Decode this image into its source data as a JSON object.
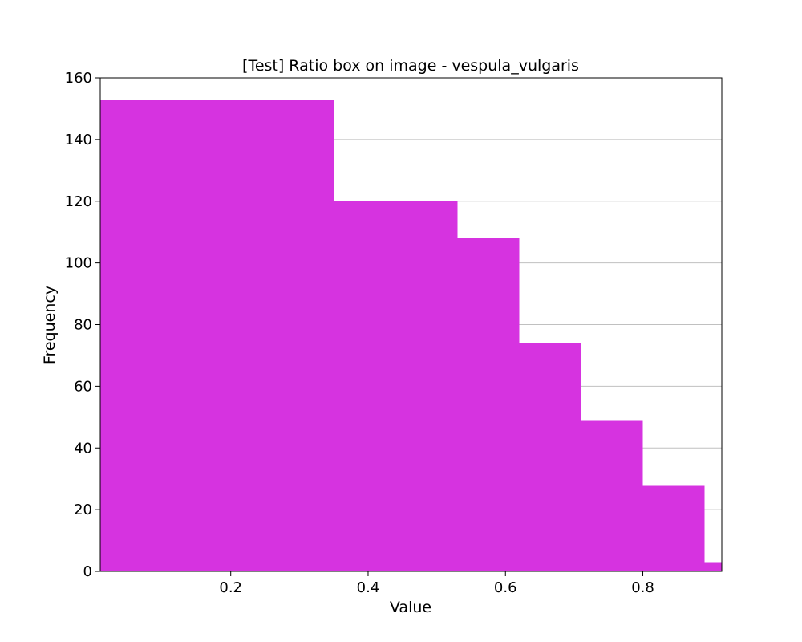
{
  "chart_data": {
    "type": "bar",
    "subtype": "histogram",
    "title": "[Test] Ratio box on image - vespula_vulgaris",
    "xlabel": "Value",
    "ylabel": "Frequency",
    "xlim": [
      0.01,
      0.915
    ],
    "ylim": [
      0,
      160
    ],
    "xticks": [
      0.2,
      0.4,
      0.6,
      0.8
    ],
    "yticks": [
      0,
      20,
      40,
      60,
      80,
      100,
      120,
      140,
      160
    ],
    "grid": "y",
    "bar_color": "#d633e0",
    "bins": [
      {
        "x0": 0.01,
        "x1": 0.35,
        "value": 153
      },
      {
        "x0": 0.35,
        "x1": 0.53,
        "value": 120
      },
      {
        "x0": 0.53,
        "x1": 0.62,
        "value": 108
      },
      {
        "x0": 0.62,
        "x1": 0.71,
        "value": 74
      },
      {
        "x0": 0.71,
        "x1": 0.8,
        "value": 49
      },
      {
        "x0": 0.8,
        "x1": 0.89,
        "value": 28
      },
      {
        "x0": 0.89,
        "x1": 0.915,
        "value": 3
      }
    ]
  }
}
